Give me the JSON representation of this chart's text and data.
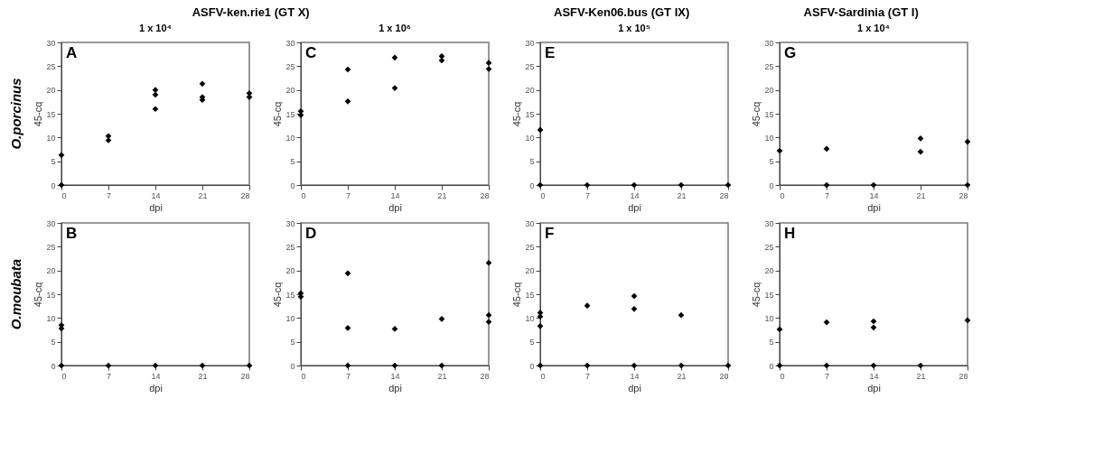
{
  "chart_data": [
    {
      "type": "scatter",
      "title": "ASFV-ken.rie1 (GT X)",
      "subtitle": "1 x 10⁴",
      "xlabel": "dpi",
      "ylabel": "45-cq",
      "annotations": [
        "A",
        "O.porcinus"
      ],
      "marker": "diamond",
      "xlim": [
        0,
        28
      ],
      "xticks": [
        0,
        7,
        14,
        21,
        28
      ],
      "ylim": [
        0,
        30
      ],
      "yticks": [
        0,
        5,
        10,
        15,
        20,
        25,
        30
      ],
      "x": [
        0,
        0,
        7,
        7,
        14,
        14,
        14,
        21,
        21,
        21,
        28,
        28
      ],
      "series": [
        {
          "color": "#000000",
          "values": [
            0,
            6.3,
            10.3,
            9.4,
            20,
            19,
            16,
            21.3,
            18.5,
            17.9,
            19.3,
            18.5
          ]
        }
      ]
    },
    {
      "type": "scatter",
      "xlabel": "dpi",
      "ylabel": "45-cq",
      "annotations": [
        "B",
        "O.moubata"
      ],
      "marker": "diamond",
      "xlim": [
        0,
        28
      ],
      "xticks": [
        0,
        7,
        14,
        21,
        28
      ],
      "ylim": [
        0,
        30
      ],
      "yticks": [
        0,
        5,
        10,
        15,
        20,
        25,
        30
      ],
      "x": [
        0,
        0,
        0,
        7,
        14,
        21,
        28
      ],
      "series": [
        {
          "color": "#000000",
          "values": [
            8.5,
            7.8,
            0,
            0,
            0,
            0,
            0
          ]
        }
      ]
    },
    {
      "type": "scatter",
      "subtitle": "1 x 10⁶",
      "xlabel": "dpi",
      "ylabel": "45-cq",
      "annotations": [
        "C"
      ],
      "marker": "diamond",
      "xlim": [
        0,
        28
      ],
      "xticks": [
        0,
        7,
        14,
        21,
        28
      ],
      "ylim": [
        0,
        30
      ],
      "yticks": [
        0,
        5,
        10,
        15,
        20,
        25,
        30
      ],
      "x": [
        0,
        0,
        7,
        7,
        14,
        14,
        21,
        21,
        28,
        28
      ],
      "series": [
        {
          "color": "#000000",
          "values": [
            15.5,
            14.7,
            24.3,
            17.6,
            26.8,
            20.4,
            27.1,
            26.2,
            25.7,
            24.4
          ]
        }
      ]
    },
    {
      "type": "scatter",
      "xlabel": "dpi",
      "ylabel": "45-cq",
      "annotations": [
        "D"
      ],
      "marker": "diamond",
      "xlim": [
        0,
        28
      ],
      "xticks": [
        0,
        7,
        14,
        21,
        28
      ],
      "ylim": [
        0,
        30
      ],
      "yticks": [
        0,
        5,
        10,
        15,
        20,
        25,
        30
      ],
      "x": [
        0,
        0,
        7,
        7,
        7,
        14,
        14,
        21,
        21,
        28,
        28,
        28
      ],
      "series": [
        {
          "color": "#000000",
          "values": [
            15.2,
            14.5,
            19.4,
            7.9,
            0,
            7.7,
            0,
            9.8,
            0,
            21.6,
            10.6,
            9.2
          ]
        }
      ]
    },
    {
      "type": "scatter",
      "title": "ASFV-Ken06.bus (GT IX)",
      "subtitle": "1 x 10⁵",
      "xlabel": "dpi",
      "ylabel": "45-cq",
      "annotations": [
        "E"
      ],
      "marker": "diamond",
      "xlim": [
        0,
        28
      ],
      "xticks": [
        0,
        7,
        14,
        21,
        28
      ],
      "ylim": [
        0,
        30
      ],
      "yticks": [
        0,
        5,
        10,
        15,
        20,
        25,
        30
      ],
      "x": [
        0,
        0,
        7,
        14,
        21,
        28
      ],
      "series": [
        {
          "color": "#000000",
          "values": [
            11.6,
            0,
            0,
            0,
            0,
            0
          ]
        }
      ]
    },
    {
      "type": "scatter",
      "xlabel": "dpi",
      "ylabel": "45-cq",
      "annotations": [
        "F"
      ],
      "marker": "diamond",
      "xlim": [
        0,
        28
      ],
      "xticks": [
        0,
        7,
        14,
        21,
        28
      ],
      "ylim": [
        0,
        30
      ],
      "yticks": [
        0,
        5,
        10,
        15,
        20,
        25,
        30
      ],
      "x": [
        0,
        0,
        0,
        0,
        7,
        7,
        14,
        14,
        14,
        21,
        21,
        28
      ],
      "series": [
        {
          "color": "#000000",
          "values": [
            11.1,
            10.3,
            8.3,
            0,
            12.6,
            0,
            14.6,
            11.9,
            0,
            10.6,
            0,
            0
          ]
        }
      ]
    },
    {
      "type": "scatter",
      "title": "ASFV-Sardinia (GT I)",
      "subtitle": "1 x 10⁴",
      "xlabel": "dpi",
      "ylabel": "45-cq",
      "annotations": [
        "G"
      ],
      "marker": "diamond",
      "xlim": [
        0,
        28
      ],
      "xticks": [
        0,
        7,
        14,
        21,
        28
      ],
      "ylim": [
        0,
        30
      ],
      "yticks": [
        0,
        5,
        10,
        15,
        20,
        25,
        30
      ],
      "x": [
        0,
        7,
        7,
        14,
        21,
        21,
        28,
        28
      ],
      "series": [
        {
          "color": "#000000",
          "values": [
            7.2,
            7.6,
            0,
            0,
            9.8,
            7.0,
            9.1,
            0
          ]
        }
      ]
    },
    {
      "type": "scatter",
      "xlabel": "dpi",
      "ylabel": "45-cq",
      "annotations": [
        "H"
      ],
      "marker": "diamond",
      "xlim": [
        0,
        28
      ],
      "xticks": [
        0,
        7,
        14,
        21,
        28
      ],
      "ylim": [
        0,
        30
      ],
      "yticks": [
        0,
        5,
        10,
        15,
        20,
        25,
        30
      ],
      "x": [
        0,
        0,
        7,
        7,
        14,
        14,
        14,
        21,
        28
      ],
      "series": [
        {
          "color": "#000000",
          "values": [
            7.6,
            0,
            9.1,
            0,
            9.3,
            8.0,
            0,
            0,
            9.5
          ]
        }
      ]
    }
  ]
}
